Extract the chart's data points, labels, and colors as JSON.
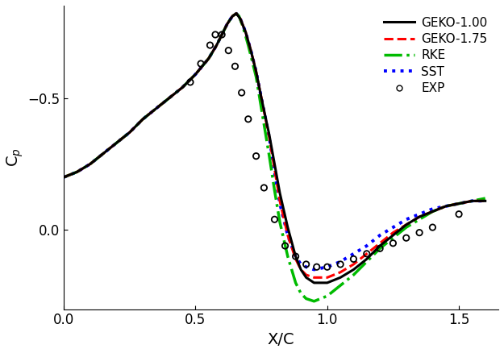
{
  "title": "",
  "xlabel": "X/C",
  "ylabel": "C$_p$",
  "xlim": [
    0,
    1.65
  ],
  "ylim": [
    0.3,
    -0.85
  ],
  "xticks": [
    0.0,
    0.5,
    1.0,
    1.5
  ],
  "yticks": [
    -0.5,
    0.0
  ],
  "lines": {
    "GEKO-1.00": {
      "color": "#000000",
      "linestyle": "-",
      "linewidth": 2.2,
      "x": [
        0.0,
        0.05,
        0.1,
        0.15,
        0.2,
        0.25,
        0.3,
        0.35,
        0.4,
        0.45,
        0.5,
        0.55,
        0.58,
        0.6,
        0.62,
        0.64,
        0.655,
        0.67,
        0.69,
        0.71,
        0.73,
        0.75,
        0.78,
        0.8,
        0.82,
        0.85,
        0.88,
        0.9,
        0.92,
        0.95,
        1.0,
        1.05,
        1.1,
        1.15,
        1.2,
        1.25,
        1.3,
        1.35,
        1.4,
        1.45,
        1.5,
        1.55,
        1.6
      ],
      "y": [
        -0.2,
        -0.22,
        -0.25,
        -0.29,
        -0.33,
        -0.37,
        -0.42,
        -0.46,
        -0.5,
        -0.54,
        -0.59,
        -0.65,
        -0.7,
        -0.74,
        -0.78,
        -0.81,
        -0.82,
        -0.8,
        -0.75,
        -0.68,
        -0.6,
        -0.5,
        -0.36,
        -0.25,
        -0.14,
        -0.01,
        0.1,
        0.15,
        0.18,
        0.2,
        0.2,
        0.18,
        0.15,
        0.11,
        0.06,
        0.02,
        -0.02,
        -0.05,
        -0.07,
        -0.09,
        -0.1,
        -0.11,
        -0.11
      ]
    },
    "GEKO-1.75": {
      "color": "#ff0000",
      "linestyle": "--",
      "linewidth": 2.2,
      "x": [
        0.0,
        0.05,
        0.1,
        0.15,
        0.2,
        0.25,
        0.3,
        0.35,
        0.4,
        0.45,
        0.5,
        0.55,
        0.58,
        0.6,
        0.62,
        0.64,
        0.655,
        0.67,
        0.69,
        0.71,
        0.73,
        0.75,
        0.78,
        0.8,
        0.82,
        0.85,
        0.88,
        0.9,
        0.92,
        0.95,
        1.0,
        1.05,
        1.1,
        1.15,
        1.2,
        1.25,
        1.3,
        1.35,
        1.4,
        1.45,
        1.5,
        1.55,
        1.6
      ],
      "y": [
        -0.2,
        -0.22,
        -0.25,
        -0.29,
        -0.33,
        -0.37,
        -0.42,
        -0.46,
        -0.5,
        -0.54,
        -0.59,
        -0.65,
        -0.7,
        -0.74,
        -0.78,
        -0.81,
        -0.82,
        -0.8,
        -0.75,
        -0.68,
        -0.6,
        -0.5,
        -0.35,
        -0.23,
        -0.11,
        0.02,
        0.11,
        0.15,
        0.17,
        0.18,
        0.18,
        0.16,
        0.13,
        0.09,
        0.05,
        0.01,
        -0.02,
        -0.05,
        -0.07,
        -0.09,
        -0.1,
        -0.11,
        -0.11
      ]
    },
    "RKE": {
      "color": "#00bb00",
      "linestyle": "-.",
      "linewidth": 2.5,
      "x": [
        0.0,
        0.05,
        0.1,
        0.15,
        0.2,
        0.25,
        0.3,
        0.35,
        0.4,
        0.45,
        0.5,
        0.55,
        0.58,
        0.6,
        0.62,
        0.64,
        0.655,
        0.665,
        0.68,
        0.7,
        0.73,
        0.75,
        0.78,
        0.8,
        0.82,
        0.85,
        0.88,
        0.9,
        0.92,
        0.95,
        1.0,
        1.05,
        1.1,
        1.15,
        1.2,
        1.25,
        1.3,
        1.35,
        1.4,
        1.45,
        1.5,
        1.55,
        1.6
      ],
      "y": [
        -0.2,
        -0.22,
        -0.25,
        -0.29,
        -0.33,
        -0.37,
        -0.42,
        -0.46,
        -0.5,
        -0.54,
        -0.59,
        -0.65,
        -0.7,
        -0.74,
        -0.78,
        -0.81,
        -0.82,
        -0.81,
        -0.77,
        -0.7,
        -0.58,
        -0.46,
        -0.28,
        -0.15,
        -0.03,
        0.1,
        0.2,
        0.24,
        0.26,
        0.27,
        0.25,
        0.21,
        0.17,
        0.12,
        0.07,
        0.03,
        -0.01,
        -0.04,
        -0.07,
        -0.09,
        -0.1,
        -0.11,
        -0.12
      ]
    },
    "SST": {
      "color": "#0000ff",
      "linestyle": ":",
      "linewidth": 2.8,
      "x": [
        0.0,
        0.05,
        0.1,
        0.15,
        0.2,
        0.25,
        0.3,
        0.35,
        0.4,
        0.45,
        0.5,
        0.55,
        0.58,
        0.6,
        0.62,
        0.64,
        0.655,
        0.67,
        0.69,
        0.71,
        0.73,
        0.75,
        0.78,
        0.8,
        0.82,
        0.85,
        0.88,
        0.9,
        0.92,
        0.95,
        1.0,
        1.05,
        1.1,
        1.15,
        1.2,
        1.25,
        1.3,
        1.35,
        1.4,
        1.45,
        1.5,
        1.55,
        1.6
      ],
      "y": [
        -0.2,
        -0.22,
        -0.25,
        -0.29,
        -0.33,
        -0.37,
        -0.42,
        -0.46,
        -0.5,
        -0.54,
        -0.59,
        -0.65,
        -0.7,
        -0.74,
        -0.78,
        -0.81,
        -0.82,
        -0.8,
        -0.75,
        -0.68,
        -0.6,
        -0.5,
        -0.35,
        -0.22,
        -0.1,
        0.02,
        0.1,
        0.13,
        0.14,
        0.15,
        0.14,
        0.12,
        0.09,
        0.06,
        0.02,
        -0.01,
        -0.04,
        -0.06,
        -0.08,
        -0.09,
        -0.1,
        -0.11,
        -0.11
      ]
    }
  },
  "exp_x": [
    0.48,
    0.52,
    0.555,
    0.575,
    0.6,
    0.625,
    0.65,
    0.675,
    0.7,
    0.73,
    0.76,
    0.8,
    0.84,
    0.88,
    0.92,
    0.96,
    1.0,
    1.05,
    1.1,
    1.15,
    1.2,
    1.25,
    1.3,
    1.35,
    1.4,
    1.5
  ],
  "exp_y": [
    -0.56,
    -0.63,
    -0.7,
    -0.74,
    -0.74,
    -0.68,
    -0.62,
    -0.52,
    -0.42,
    -0.28,
    -0.16,
    -0.04,
    0.06,
    0.1,
    0.13,
    0.14,
    0.14,
    0.13,
    0.11,
    0.09,
    0.07,
    0.05,
    0.03,
    0.01,
    -0.01,
    -0.06
  ],
  "legend_labels": [
    "GEKO-1.00",
    "GEKO-1.75",
    "RKE",
    "SST",
    "EXP"
  ],
  "background_color": "#ffffff"
}
